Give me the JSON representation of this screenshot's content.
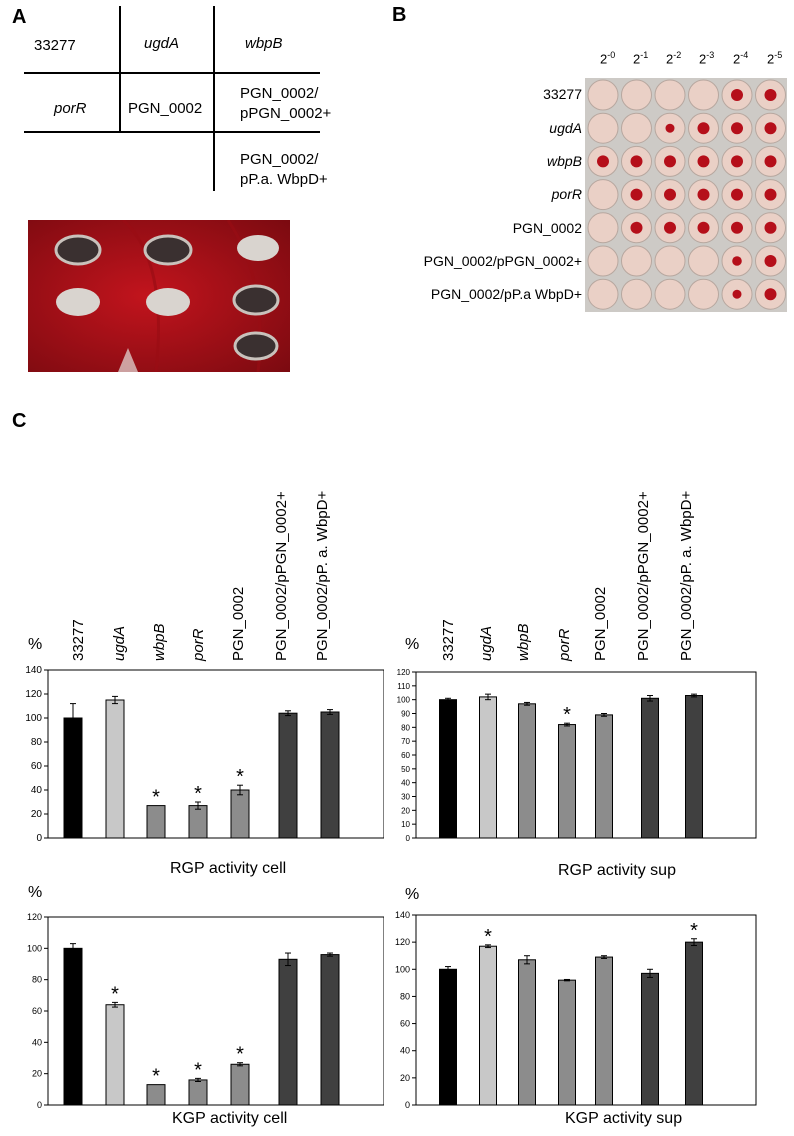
{
  "panels": {
    "a": "A",
    "b": "B",
    "c": "C"
  },
  "panel_a": {
    "grid": {
      "r0c0": "33277",
      "r0c1": "ugdA",
      "r0c2": "wbpB",
      "r1c0": "porR",
      "r1c1": "PGN_0002",
      "r1c2_l1": "PGN_0002/",
      "r1c2_l2": "pPGN_0002+",
      "r2c2_l1": "PGN_0002/",
      "r2c2_l2": "pP.a. WbpD+"
    },
    "plate_colors": {
      "background": "#b5121b",
      "dark_colony": "#3a3030",
      "light_colony": "#d9d4cf"
    }
  },
  "panel_b": {
    "columns": [
      {
        "base": "2",
        "exp": "-0"
      },
      {
        "base": "2",
        "exp": "-1"
      },
      {
        "base": "2",
        "exp": "-2"
      },
      {
        "base": "2",
        "exp": "-3"
      },
      {
        "base": "2",
        "exp": "-4"
      },
      {
        "base": "2",
        "exp": "-5"
      }
    ],
    "rows": [
      {
        "label": "33277",
        "italic": false,
        "dots": [
          0,
          0,
          0,
          0,
          1,
          1
        ]
      },
      {
        "label": "ugdA",
        "italic": true,
        "dots": [
          0,
          0,
          0.5,
          1,
          1,
          1
        ]
      },
      {
        "label": "wbpB",
        "italic": true,
        "dots": [
          1,
          1,
          1,
          1,
          1,
          1
        ]
      },
      {
        "label": "porR",
        "italic": true,
        "dots": [
          0,
          1,
          1,
          1,
          1,
          1
        ]
      },
      {
        "label": "PGN_0002",
        "italic": false,
        "dots": [
          0,
          1,
          1,
          1,
          1,
          1
        ]
      },
      {
        "label": "PGN_0002/pPGN_0002+",
        "italic": false,
        "dots": [
          0,
          0,
          0,
          0,
          0.6,
          1
        ]
      },
      {
        "label": "PGN_0002/pP.a  WbpD+",
        "italic": false,
        "dots": [
          0,
          0,
          0,
          0,
          0.5,
          1
        ]
      }
    ]
  },
  "strain_labels": [
    {
      "text": "33277",
      "italic": false
    },
    {
      "text": "ugdA",
      "italic": true
    },
    {
      "text": "wbpB",
      "italic": true
    },
    {
      "text": "porR",
      "italic": true
    },
    {
      "text": "PGN_0002",
      "italic": false
    },
    {
      "text": "PGN_0002/pPGN_0002+",
      "italic": false
    },
    {
      "text": "PGN_0002/pP. a. WbpD+",
      "italic": false
    }
  ],
  "strain_labels_sup": [
    {
      "text": "33277",
      "italic": false
    },
    {
      "text": "ugdA",
      "italic": true
    },
    {
      "text": "wbpB",
      "italic": true
    },
    {
      "text": "porR",
      "italic": true
    },
    {
      "text": "PGN_0002",
      "italic": false
    },
    {
      "text": "PGN_0002/pPGN_0002+",
      "italic": false
    },
    {
      "text": "PGN_0002/pP. a. WbpD+",
      "italic": false
    }
  ],
  "bar_colors": [
    "#000000",
    "#c8c8c8",
    "#8c8c8c",
    "#8c8c8c",
    "#8c8c8c",
    "#404040",
    "#404040"
  ],
  "percent_label": "%",
  "chart_data": [
    {
      "type": "bar",
      "title": "RGP activity cell",
      "ylabel": "%",
      "ylim": [
        0,
        140
      ],
      "yticks": [
        0,
        20,
        40,
        60,
        80,
        100,
        120,
        140
      ],
      "categories": [
        "33277",
        "ugdA",
        "wbpB",
        "porR",
        "PGN_0002",
        "PGN_0002/pPGN_0002+",
        "PGN_0002/pP. a. WbpD+"
      ],
      "values": [
        100,
        115,
        27,
        27,
        40,
        104,
        105
      ],
      "errors": [
        12,
        3,
        0,
        3,
        4,
        2,
        2
      ],
      "significant": [
        false,
        false,
        true,
        true,
        true,
        false,
        false
      ]
    },
    {
      "type": "bar",
      "title": "RGP activity sup",
      "ylabel": "%",
      "ylim": [
        0,
        120
      ],
      "yticks": [
        0,
        10,
        20,
        30,
        40,
        50,
        60,
        70,
        80,
        90,
        100,
        110,
        120
      ],
      "categories": [
        "33277",
        "ugdA",
        "wbpB",
        "porR",
        "PGN_0002",
        "PGN_0002/pPGN_0002+",
        "PGN_0002/pP. a. WbpD+"
      ],
      "values": [
        100,
        102,
        97,
        82,
        89,
        101,
        103
      ],
      "errors": [
        1,
        2,
        1,
        1,
        1,
        2,
        1
      ],
      "significant": [
        false,
        false,
        false,
        true,
        false,
        false,
        false
      ]
    },
    {
      "type": "bar",
      "title": "KGP activity cell",
      "ylabel": "%",
      "ylim": [
        0,
        120
      ],
      "yticks": [
        0,
        20,
        40,
        60,
        80,
        100,
        120
      ],
      "categories": [
        "33277",
        "ugdA",
        "wbpB",
        "porR",
        "PGN_0002",
        "PGN_0002/pPGN_0002+",
        "PGN_0002/pP. a. WbpD+"
      ],
      "values": [
        100,
        64,
        13,
        16,
        26,
        93,
        96
      ],
      "errors": [
        3,
        1.5,
        0,
        1,
        1,
        4,
        1
      ],
      "significant": [
        false,
        true,
        true,
        true,
        true,
        false,
        false
      ]
    },
    {
      "type": "bar",
      "title": "KGP activity sup",
      "ylabel": "%",
      "ylim": [
        0,
        140
      ],
      "yticks": [
        0,
        20,
        40,
        60,
        80,
        100,
        120,
        140
      ],
      "categories": [
        "33277",
        "ugdA",
        "wbpB",
        "porR",
        "PGN_0002",
        "PGN_0002/pPGN_0002+",
        "PGN_0002/pP. a. WbpD+"
      ],
      "values": [
        100,
        117,
        107,
        92,
        109,
        97,
        120
      ],
      "errors": [
        2,
        1,
        3,
        0.5,
        1,
        3,
        2.5
      ],
      "significant": [
        false,
        true,
        false,
        false,
        false,
        false,
        true
      ]
    }
  ]
}
